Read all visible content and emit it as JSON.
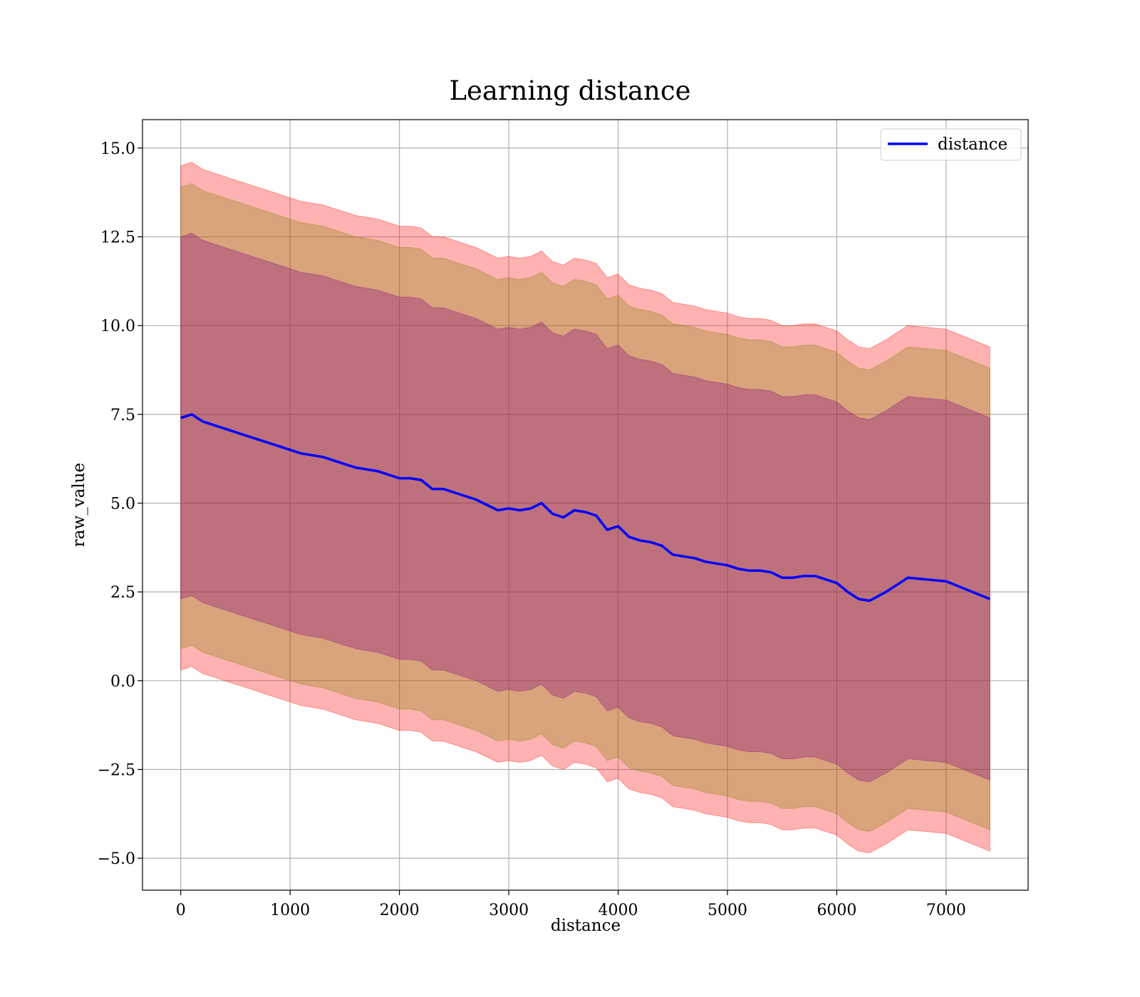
{
  "chart_data": {
    "type": "line",
    "title": "Learning distance",
    "xlabel": "distance",
    "ylabel": "raw_value",
    "xlim": [
      -350,
      7750
    ],
    "ylim": [
      -5.9,
      15.8
    ],
    "xticks": [
      0,
      1000,
      2000,
      3000,
      4000,
      5000,
      6000,
      7000
    ],
    "xtick_labels": [
      "0",
      "1000",
      "2000",
      "3000",
      "4000",
      "5000",
      "6000",
      "7000"
    ],
    "yticks": [
      -5.0,
      -2.5,
      0.0,
      2.5,
      5.0,
      7.5,
      10.0,
      12.5,
      15.0
    ],
    "ytick_labels": [
      "−5.0",
      "−2.5",
      "0.0",
      "2.5",
      "5.0",
      "7.5",
      "10.0",
      "12.5",
      "15.0"
    ],
    "grid": true,
    "legend_position": "top-right",
    "series": [
      {
        "name": "distance",
        "color": "#0000ff",
        "x": [
          0,
          100,
          200,
          300,
          400,
          500,
          600,
          700,
          800,
          900,
          1000,
          1100,
          1200,
          1300,
          1400,
          1500,
          1600,
          1700,
          1800,
          1900,
          2000,
          2100,
          2200,
          2300,
          2400,
          2500,
          2600,
          2700,
          2800,
          2900,
          3000,
          3100,
          3200,
          3300,
          3400,
          3500,
          3600,
          3700,
          3800,
          3900,
          4000,
          4100,
          4200,
          4300,
          4400,
          4500,
          4600,
          4700,
          4800,
          4900,
          5000,
          5100,
          5200,
          5300,
          5400,
          5500,
          5600,
          5700,
          5800,
          5900,
          6000,
          6100,
          6200,
          6300,
          6450,
          6650,
          7000,
          7400
        ],
        "y": [
          7.4,
          7.5,
          7.3,
          7.2,
          7.1,
          7.0,
          6.9,
          6.8,
          6.7,
          6.6,
          6.5,
          6.4,
          6.35,
          6.3,
          6.2,
          6.1,
          6.0,
          5.95,
          5.9,
          5.8,
          5.7,
          5.7,
          5.65,
          5.4,
          5.4,
          5.3,
          5.2,
          5.1,
          4.95,
          4.8,
          4.85,
          4.8,
          4.85,
          5.0,
          4.7,
          4.6,
          4.8,
          4.75,
          4.65,
          4.25,
          4.35,
          4.05,
          3.95,
          3.9,
          3.8,
          3.55,
          3.5,
          3.45,
          3.35,
          3.3,
          3.25,
          3.15,
          3.1,
          3.1,
          3.05,
          2.9,
          2.9,
          2.95,
          2.95,
          2.85,
          2.75,
          2.5,
          2.3,
          2.25,
          2.5,
          2.9,
          2.8,
          2.3
        ]
      }
    ],
    "bands": [
      {
        "color": "#ff0000",
        "alpha": 0.3,
        "offset": 7.1
      },
      {
        "color": "#808000",
        "alpha": 0.3,
        "offset": 6.5
      },
      {
        "color": "#800080",
        "alpha": 0.3,
        "offset": 5.1
      }
    ]
  }
}
